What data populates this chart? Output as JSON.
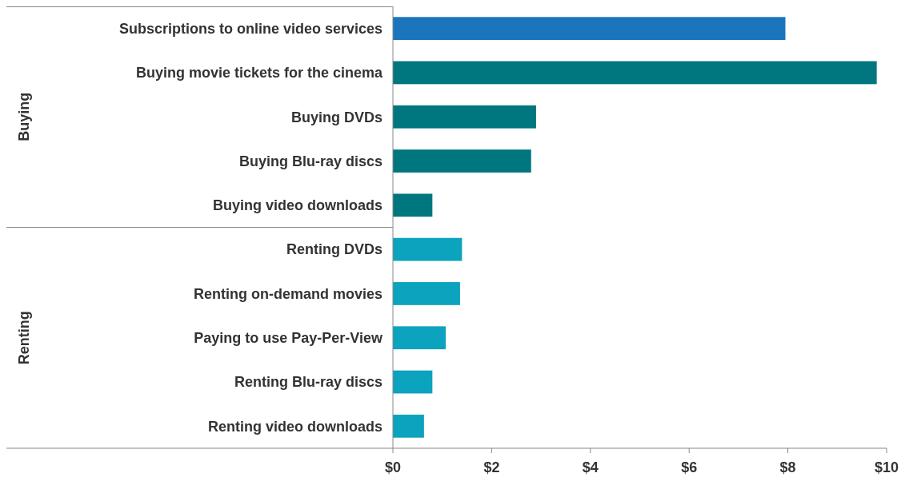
{
  "chart_data": {
    "type": "bar",
    "orientation": "horizontal",
    "categories": [
      "Subscriptions to online video services",
      "Buying movie tickets for the cinema",
      "Buying DVDs",
      "Buying Blu-ray discs",
      "Buying video downloads",
      "Renting DVDs",
      "Renting on-demand movies",
      "Paying to use Pay-Per-View",
      "Renting Blu-ray discs",
      "Renting video downloads"
    ],
    "values": [
      7.95,
      9.8,
      2.9,
      2.8,
      0.8,
      1.4,
      1.36,
      1.07,
      0.8,
      0.63
    ],
    "colors": [
      "#1b75bc",
      "#00767f",
      "#00767f",
      "#00767f",
      "#00767f",
      "#0ba3bd",
      "#0ba3bd",
      "#0ba3bd",
      "#0ba3bd",
      "#0ba3bd"
    ],
    "xlim": [
      0,
      10
    ],
    "xticks": [
      {
        "value": 0,
        "label": "$0"
      },
      {
        "value": 2,
        "label": "$2"
      },
      {
        "value": 4,
        "label": "$4"
      },
      {
        "value": 6,
        "label": "$6"
      },
      {
        "value": 8,
        "label": "$8"
      },
      {
        "value": 10,
        "label": "$10"
      }
    ],
    "grid": false,
    "annotations": [
      "Buying",
      "Renting"
    ]
  }
}
